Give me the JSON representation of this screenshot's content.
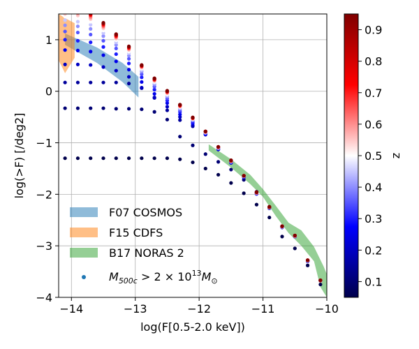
{
  "chart_data": {
    "type": "scatter",
    "xlabel": "log(F[0.5-2.0 keV])",
    "ylabel": "log(>F) [/deg2]",
    "xlim": [
      -14.2,
      -10.0
    ],
    "ylim": [
      -4.0,
      1.5
    ],
    "x_ticks": [
      -14,
      -13,
      -12,
      -11,
      -10
    ],
    "x_tick_labels": [
      "−14",
      "−13",
      "−12",
      "−11",
      "−10"
    ],
    "y_ticks": [
      -4,
      -3,
      -2,
      -1,
      0,
      1
    ],
    "y_tick_labels": [
      "−4",
      "−3",
      "−2",
      "−1",
      "0",
      "1"
    ],
    "grid": true,
    "legend_position": "lower-left",
    "colorbar": {
      "label": "z",
      "colormap": "seismic",
      "range": [
        0.05,
        0.95
      ],
      "ticks": [
        0.1,
        0.2,
        0.3,
        0.4,
        0.5,
        0.6,
        0.7,
        0.8,
        0.9
      ],
      "tick_labels": [
        "0.1",
        "0.2",
        "0.3",
        "0.4",
        "0.5",
        "0.6",
        "0.7",
        "0.8",
        "0.9"
      ]
    },
    "bands": [
      {
        "name": "F07 COSMOS",
        "color": "#1f77b4",
        "upper": [
          [
            -14.1,
            1.12
          ],
          [
            -13.6,
            0.85
          ],
          [
            -13.2,
            0.55
          ],
          [
            -12.95,
            0.28
          ]
        ],
        "lower": [
          [
            -14.1,
            0.9
          ],
          [
            -13.6,
            0.55
          ],
          [
            -13.2,
            0.18
          ],
          [
            -12.95,
            -0.12
          ]
        ]
      },
      {
        "name": "F15 CDFS",
        "color": "#ff7f0e",
        "upper": [
          [
            -14.2,
            1.5
          ],
          [
            -14.1,
            1.42
          ],
          [
            -13.95,
            1.32
          ]
        ],
        "lower": [
          [
            -14.2,
            0.6
          ],
          [
            -14.1,
            0.35
          ],
          [
            -13.95,
            0.65
          ]
        ]
      },
      {
        "name": "B17 NORAS 2",
        "color": "#2ca02c",
        "upper": [
          [
            -11.85,
            -1.03
          ],
          [
            -11.5,
            -1.32
          ],
          [
            -11.2,
            -1.62
          ],
          [
            -11.0,
            -1.9
          ],
          [
            -10.8,
            -2.22
          ],
          [
            -10.6,
            -2.55
          ],
          [
            -10.4,
            -2.7
          ],
          [
            -10.2,
            -3.02
          ],
          [
            -10.05,
            -3.4
          ],
          [
            -10.0,
            -3.55
          ]
        ],
        "lower": [
          [
            -11.85,
            -1.15
          ],
          [
            -11.5,
            -1.48
          ],
          [
            -11.2,
            -1.8
          ],
          [
            -11.0,
            -2.05
          ],
          [
            -10.8,
            -2.42
          ],
          [
            -10.6,
            -2.75
          ],
          [
            -10.4,
            -3.0
          ],
          [
            -10.2,
            -3.3
          ],
          [
            -10.1,
            -3.8
          ],
          [
            -10.0,
            -4.0
          ]
        ]
      }
    ],
    "points_label": "M_500c > 2 × 10^13 M_⊙",
    "points_x": [
      -14.1,
      -13.9,
      -13.7,
      -13.5,
      -13.3,
      -13.1,
      -12.9,
      -12.7,
      -12.5,
      -12.3,
      -12.1,
      -11.9,
      -11.7,
      -11.5,
      -11.3,
      -11.1,
      -10.9,
      -10.7,
      -10.5,
      -10.3,
      -10.1
    ],
    "points_z": [
      0.05,
      0.1,
      0.15,
      0.2,
      0.25,
      0.3,
      0.35,
      0.4,
      0.45,
      0.5,
      0.55,
      0.6,
      0.65,
      0.7,
      0.75,
      0.8,
      0.85,
      0.9,
      0.95
    ],
    "points_logN": [
      [
        -1.3,
        -1.3,
        -1.3,
        -1.3,
        -1.3,
        -1.3,
        -1.3,
        -1.3,
        -1.3,
        -1.32,
        -1.38,
        -1.5,
        -1.62,
        -1.78,
        -1.98,
        -2.2,
        -2.45,
        -2.82,
        -3.05,
        -3.38,
        -3.75
      ],
      [
        -0.33,
        -0.33,
        -0.33,
        -0.33,
        -0.34,
        -0.34,
        -0.35,
        -0.4,
        -0.55,
        -0.88,
        -1.05,
        -1.22,
        -1.37,
        -1.52,
        -1.72,
        -1.95,
        -2.27,
        -2.64,
        -2.82,
        -3.3,
        -3.68
      ],
      [
        0.17,
        0.17,
        0.17,
        0.17,
        0.17,
        0.15,
        0.06,
        -0.13,
        -0.37,
        -0.56,
        -0.68,
        -0.84,
        -1.13,
        -1.39,
        -1.67,
        -1.99,
        -2.27,
        -2.64,
        -2.82,
        -3.3,
        -3.68
      ],
      [
        0.52,
        0.52,
        0.51,
        0.47,
        0.4,
        0.28,
        0.07,
        -0.12,
        -0.3,
        -0.5,
        -0.66,
        -0.84,
        -1.13,
        -1.39,
        -1.67,
        -1.99,
        -2.27,
        -2.64,
        -2.82,
        -3.3,
        -3.68
      ],
      [
        0.8,
        0.79,
        0.77,
        0.7,
        0.58,
        0.42,
        0.18,
        -0.05,
        -0.23,
        -0.45,
        -0.62,
        -0.83,
        -1.12,
        -1.38,
        -1.66,
        -1.99,
        -2.27,
        -2.64,
        -2.82,
        -3.3,
        -3.68
      ],
      [
        1.0,
        0.98,
        0.95,
        0.86,
        0.72,
        0.54,
        0.27,
        0.03,
        -0.18,
        -0.4,
        -0.6,
        -0.82,
        -1.11,
        -1.38,
        -1.66,
        -1.98,
        -2.26,
        -2.64,
        -2.82,
        -3.3,
        -3.68
      ],
      [
        1.16,
        1.14,
        1.1,
        0.98,
        0.83,
        0.63,
        0.33,
        0.09,
        -0.14,
        -0.37,
        -0.57,
        -0.81,
        -1.11,
        -1.37,
        -1.65,
        -1.98,
        -2.26,
        -2.63,
        -2.82,
        -3.29,
        -3.68
      ],
      [
        1.28,
        1.26,
        1.21,
        1.07,
        0.9,
        0.69,
        0.38,
        0.13,
        -0.1,
        -0.34,
        -0.56,
        -0.8,
        -1.1,
        -1.36,
        -1.65,
        -1.98,
        -2.26,
        -2.63,
        -2.81,
        -3.29,
        -3.68
      ],
      [
        1.38,
        1.35,
        1.29,
        1.13,
        0.95,
        0.74,
        0.41,
        0.16,
        -0.08,
        -0.32,
        -0.55,
        -0.8,
        -1.1,
        -1.36,
        -1.65,
        -1.97,
        -2.26,
        -2.63,
        -2.81,
        -3.29,
        -3.68
      ],
      [
        1.45,
        1.42,
        1.35,
        1.18,
        0.99,
        0.77,
        0.44,
        0.18,
        -0.06,
        -0.31,
        -0.54,
        -0.8,
        -1.09,
        -1.36,
        -1.65,
        -1.97,
        -2.26,
        -2.63,
        -2.81,
        -3.29,
        -3.68
      ],
      [
        1.5,
        1.47,
        1.4,
        1.22,
        1.02,
        0.8,
        0.46,
        0.2,
        -0.04,
        -0.3,
        -0.53,
        -0.79,
        -1.09,
        -1.36,
        -1.65,
        -1.97,
        -2.25,
        -2.63,
        -2.81,
        -3.29,
        -3.68
      ],
      [
        1.54,
        1.51,
        1.43,
        1.25,
        1.04,
        0.82,
        0.47,
        0.21,
        -0.03,
        -0.29,
        -0.53,
        -0.79,
        -1.09,
        -1.35,
        -1.64,
        -1.97,
        -2.25,
        -2.62,
        -2.81,
        -3.28,
        -3.67
      ],
      [
        1.57,
        1.54,
        1.46,
        1.27,
        1.06,
        0.83,
        0.48,
        0.22,
        -0.02,
        -0.28,
        -0.52,
        -0.79,
        -1.09,
        -1.35,
        -1.64,
        -1.97,
        -2.25,
        -2.62,
        -2.81,
        -3.28,
        -3.67
      ],
      [
        1.6,
        1.56,
        1.48,
        1.29,
        1.07,
        0.84,
        0.49,
        0.23,
        -0.01,
        -0.28,
        -0.52,
        -0.78,
        -1.08,
        -1.35,
        -1.64,
        -1.96,
        -2.25,
        -2.62,
        -2.8,
        -3.28,
        -3.67
      ],
      [
        1.62,
        1.58,
        1.49,
        1.3,
        1.08,
        0.85,
        0.49,
        0.23,
        -0.01,
        -0.27,
        -0.52,
        -0.78,
        -1.08,
        -1.35,
        -1.64,
        -1.96,
        -2.25,
        -2.62,
        -2.8,
        -3.28,
        -3.67
      ],
      [
        1.63,
        1.59,
        1.5,
        1.31,
        1.09,
        0.86,
        0.5,
        0.24,
        0.0,
        -0.27,
        -0.51,
        -0.78,
        -1.08,
        -1.35,
        -1.64,
        -1.96,
        -2.25,
        -2.62,
        -2.8,
        -3.28,
        -3.67
      ],
      [
        1.64,
        1.6,
        1.51,
        1.32,
        1.1,
        0.86,
        0.5,
        0.24,
        0.0,
        -0.27,
        -0.51,
        -0.78,
        -1.08,
        -1.35,
        -1.64,
        -1.96,
        -2.25,
        -2.62,
        -2.8,
        -3.28,
        -3.67
      ],
      [
        1.65,
        1.61,
        1.52,
        1.32,
        1.1,
        0.87,
        0.5,
        0.25,
        0.0,
        -0.26,
        -0.51,
        -0.78,
        -1.08,
        -1.34,
        -1.64,
        -1.96,
        -2.25,
        -2.62,
        -2.8,
        -3.28,
        -3.67
      ],
      [
        1.66,
        1.62,
        1.52,
        1.33,
        1.11,
        0.87,
        0.51,
        0.25,
        0.01,
        -0.26,
        -0.51,
        -0.78,
        -1.08,
        -1.34,
        -1.64,
        -1.96,
        -2.24,
        -2.62,
        -2.8,
        -3.28,
        -3.67
      ]
    ]
  }
}
